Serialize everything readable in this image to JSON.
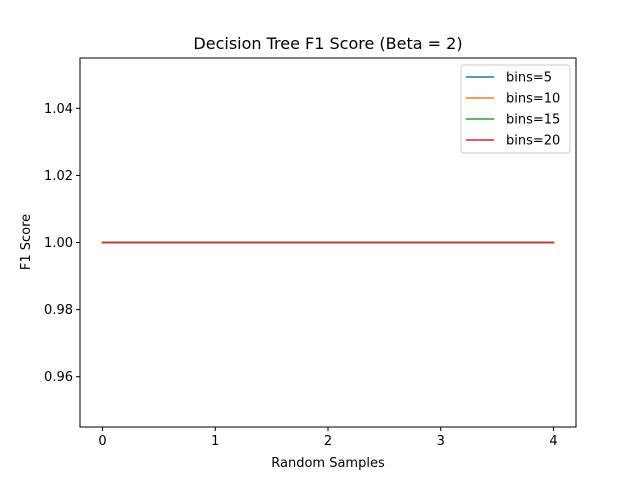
{
  "chart_data": {
    "type": "line",
    "title": "Decision Tree F1 Score (Beta = 2)",
    "xlabel": "Random Samples",
    "ylabel": "F1 Score",
    "x": [
      0,
      1,
      2,
      3,
      4
    ],
    "xlim": [
      -0.2,
      4.2
    ],
    "ylim": [
      0.945,
      1.055
    ],
    "xticks": [
      0,
      1,
      2,
      3,
      4
    ],
    "xtick_labels": [
      "0",
      "1",
      "2",
      "3",
      "4"
    ],
    "yticks": [
      0.96,
      0.98,
      1.0,
      1.02,
      1.04
    ],
    "ytick_labels": [
      "0.96",
      "0.98",
      "1.00",
      "1.02",
      "1.04"
    ],
    "grid": false,
    "legend_position": "top-right",
    "series": [
      {
        "name": "bins=5",
        "color": "#1f77b4",
        "values": [
          1.0,
          1.0,
          1.0,
          1.0,
          1.0
        ]
      },
      {
        "name": "bins=10",
        "color": "#ff7f0e",
        "values": [
          1.0,
          1.0,
          1.0,
          1.0,
          1.0
        ]
      },
      {
        "name": "bins=15",
        "color": "#2ca02c",
        "values": [
          1.0,
          1.0,
          1.0,
          1.0,
          1.0
        ]
      },
      {
        "name": "bins=20",
        "color": "#d62728",
        "values": [
          1.0,
          1.0,
          1.0,
          1.0,
          1.0
        ]
      }
    ]
  }
}
